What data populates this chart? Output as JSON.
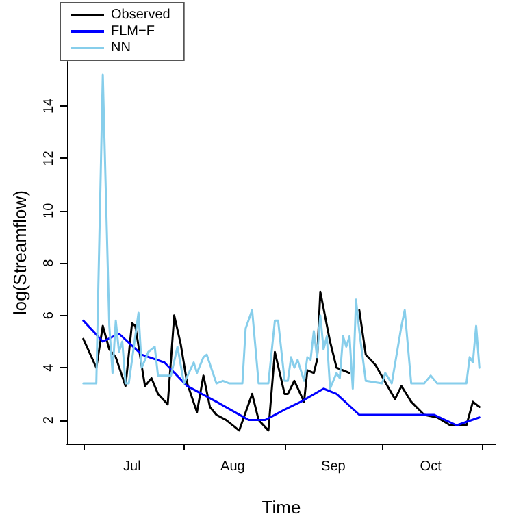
{
  "chart_data": {
    "type": "line",
    "xlabel": "Time",
    "ylabel": "log(Streamflow)",
    "xlim": [
      "--06-26",
      "--11-05"
    ],
    "xticks": [
      {
        "value": "--07-01",
        "label": null
      },
      {
        "value": "--07-16",
        "label": "Jul"
      },
      {
        "value": "--08-01",
        "label": null
      },
      {
        "value": "--08-16",
        "label": "Aug"
      },
      {
        "value": "--09-01",
        "label": null
      },
      {
        "value": "--09-16",
        "label": "Sep"
      },
      {
        "value": "--10-01",
        "label": null
      },
      {
        "value": "--10-16",
        "label": "Oct"
      },
      {
        "value": "--11-01",
        "label": null
      }
    ],
    "ylim": [
      1.1,
      15.7
    ],
    "yticks": [
      2,
      4,
      6,
      8,
      10,
      12,
      14
    ],
    "grid": false,
    "legend": "top left",
    "marker": "none",
    "line_style": "solid",
    "series": [
      {
        "name": "Observed",
        "color": "#000000",
        "x": [
          "--07-01",
          "--07-05",
          "--07-07",
          "--07-09",
          "--07-11",
          "--07-14",
          "--07-16",
          "--07-17",
          "--07-20",
          "--07-22",
          "--07-24",
          "--07-27",
          "--07-29",
          "--07-31",
          "--08-02",
          "--08-05",
          "--08-07",
          "--08-09",
          "--08-11",
          "--08-14",
          "--08-18",
          "--08-22",
          "--08-24",
          "--08-27",
          "--08-29",
          "--09-01",
          "--09-02",
          "--09-04",
          "--09-07",
          "--09-08",
          "--09-10",
          "--09-11",
          "--09-12",
          "--09-15",
          "--09-17",
          "--09-19",
          "--09-21",
          "--09-22",
          "--09-24",
          "--09-26",
          "--09-29",
          "--10-05",
          "--10-07",
          "--10-10",
          "--10-14",
          "--10-18",
          "--10-22",
          "--10-27",
          "--10-29",
          "--10-31"
        ],
        "values": [
          5.1,
          4.0,
          5.6,
          4.7,
          4.4,
          3.3,
          5.7,
          5.6,
          3.3,
          3.6,
          3.0,
          2.6,
          6.0,
          4.9,
          3.4,
          2.3,
          3.7,
          2.5,
          2.2,
          2.0,
          1.6,
          3.0,
          2.0,
          1.6,
          4.6,
          3.0,
          3.0,
          3.5,
          2.7,
          3.9,
          3.8,
          4.3,
          6.9,
          5.0,
          4.0,
          3.9,
          3.8,
          null,
          6.2,
          4.5,
          4.1,
          2.8,
          3.3,
          2.7,
          2.2,
          2.1,
          1.8,
          1.8,
          2.7,
          2.5
        ]
      },
      {
        "name": "FLM−F",
        "color": "#0000ff",
        "x": [
          "--07-01",
          "--07-07",
          "--07-12",
          "--07-19",
          "--07-26",
          "--08-02",
          "--08-11",
          "--08-21",
          "--08-26",
          "--09-01",
          "--09-06",
          "--09-13",
          "--09-17",
          "--09-24",
          "--10-03",
          "--10-08",
          "--10-17",
          "--10-24",
          "--10-31"
        ],
        "values": [
          5.8,
          5.0,
          5.3,
          4.5,
          4.2,
          3.3,
          2.7,
          2.0,
          2.0,
          2.4,
          2.7,
          3.2,
          3.0,
          2.2,
          2.2,
          2.2,
          2.2,
          1.8,
          2.1
        ]
      },
      {
        "name": "NN",
        "color": "#87ceeb",
        "x": [
          "--07-01",
          "--07-05",
          "--07-07",
          "--07-09",
          "--07-10",
          "--07-11",
          "--07-12",
          "--07-13",
          "--07-14",
          "--07-15",
          "--07-18",
          "--07-19",
          "--07-21",
          "--07-23",
          "--07-24",
          "--07-28",
          "--07-30",
          "--08-01",
          "--08-04",
          "--08-05",
          "--08-07",
          "--08-08",
          "--08-11",
          "--08-13",
          "--08-15",
          "--08-19",
          "--08-20",
          "--08-22",
          "--08-24",
          "--08-27",
          "--08-29",
          "--08-30",
          "--09-01",
          "--09-02",
          "--09-03",
          "--09-04",
          "--09-05",
          "--09-07",
          "--09-08",
          "--09-09",
          "--09-10",
          "--09-11",
          "--09-12",
          "--09-13",
          "--09-14",
          "--09-15",
          "--09-17",
          "--09-18",
          "--09-19",
          "--09-20",
          "--09-21",
          "--09-22",
          "--09-23",
          "--09-24",
          "--09-26",
          "--10-01",
          "--10-02",
          "--10-04",
          "--10-07",
          "--10-08",
          "--10-10",
          "--10-14",
          "--10-16",
          "--10-18",
          "--10-27",
          "--10-28",
          "--10-29",
          "--10-30",
          "--10-31"
        ],
        "values": [
          3.4,
          3.4,
          15.2,
          5.6,
          3.8,
          5.8,
          4.6,
          5.0,
          3.4,
          3.4,
          6.1,
          4.0,
          4.6,
          4.8,
          3.7,
          3.7,
          4.8,
          3.4,
          4.2,
          3.8,
          4.4,
          4.5,
          3.4,
          3.5,
          3.4,
          3.4,
          5.5,
          6.2,
          3.4,
          3.4,
          5.8,
          5.8,
          3.5,
          3.5,
          4.4,
          4.0,
          4.3,
          3.5,
          4.4,
          4.3,
          5.4,
          4.4,
          6.0,
          4.7,
          5.2,
          3.2,
          3.8,
          3.6,
          5.2,
          4.8,
          5.2,
          3.2,
          6.6,
          5.4,
          3.5,
          3.4,
          3.8,
          3.4,
          5.6,
          6.2,
          3.4,
          3.4,
          3.7,
          3.4,
          3.4,
          4.4,
          4.2,
          5.6,
          4.0
        ]
      }
    ]
  }
}
